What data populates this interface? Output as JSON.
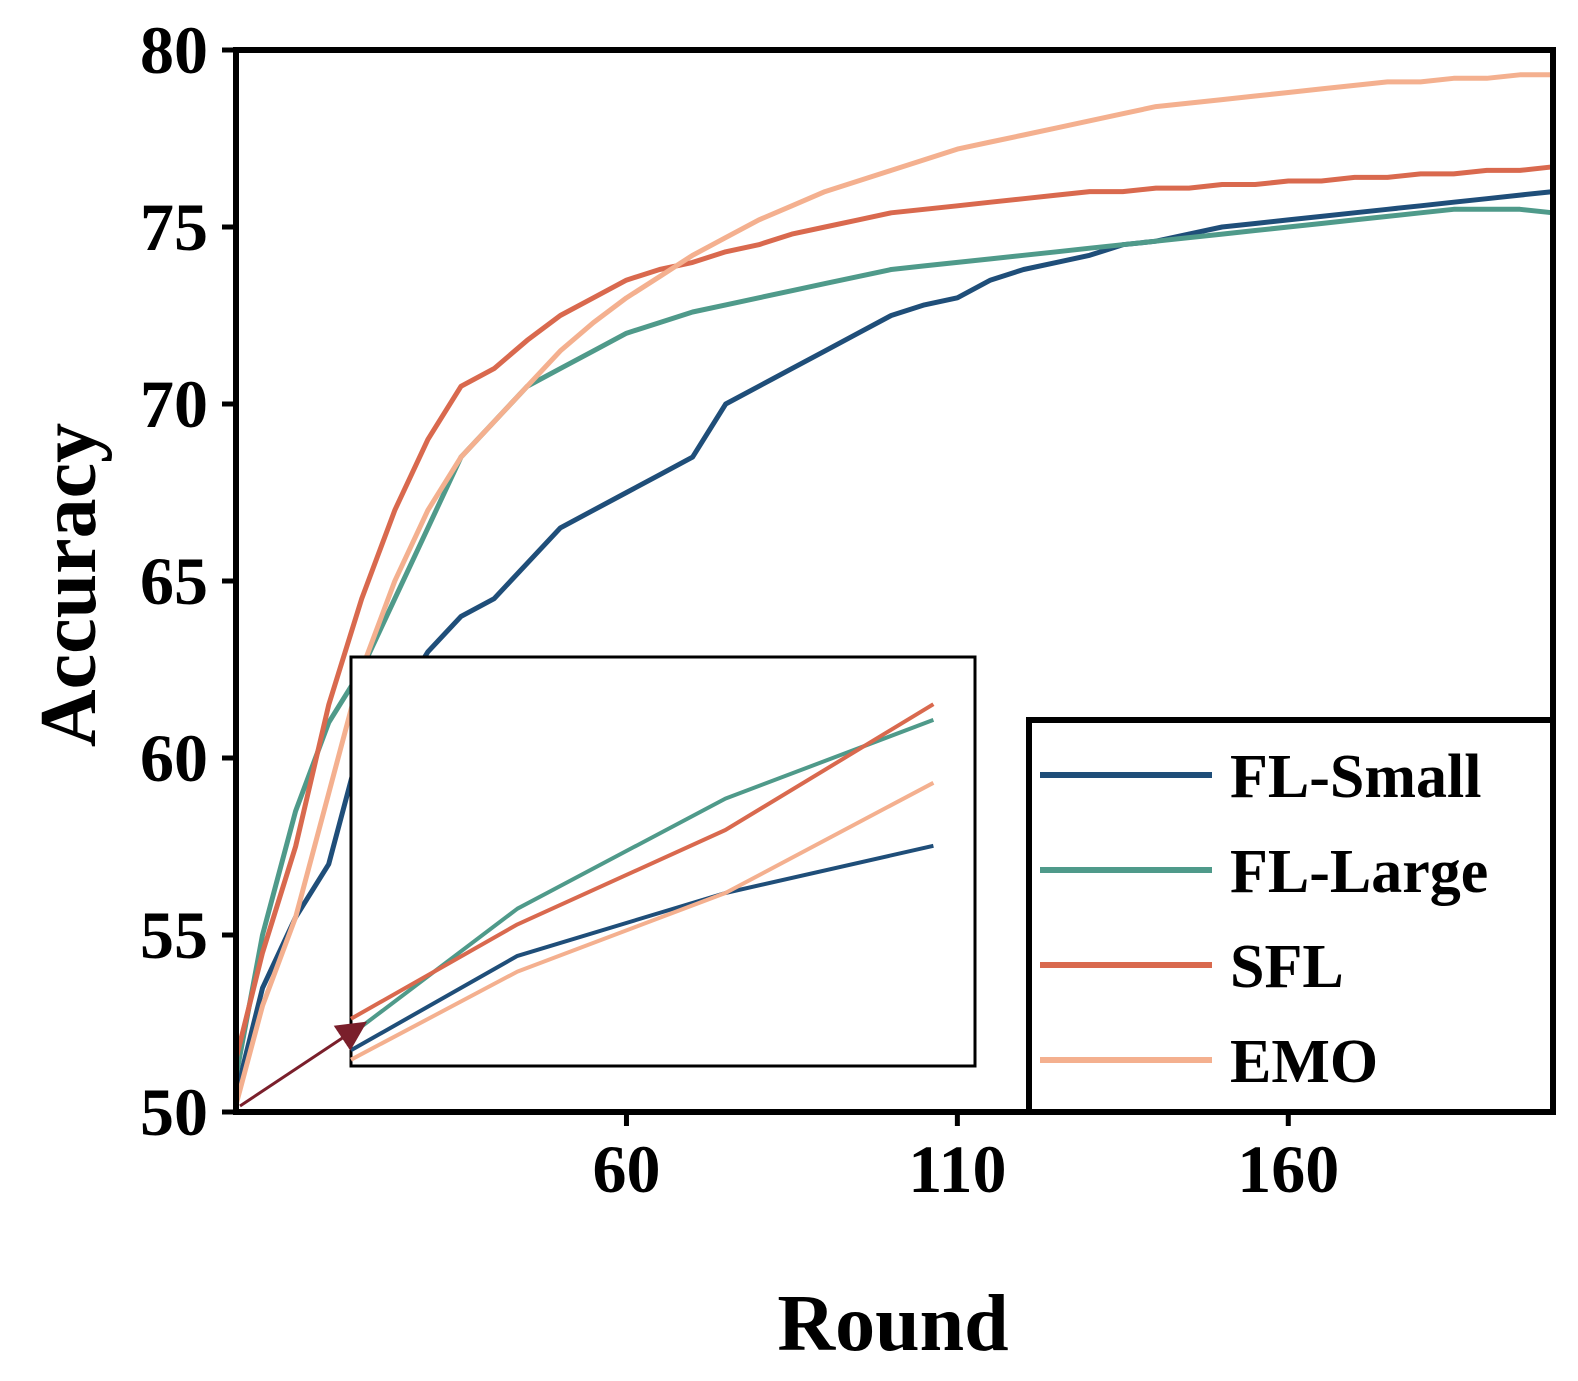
{
  "chart_data": {
    "type": "line",
    "title": "",
    "xlabel": "Round",
    "ylabel": "Accuracy",
    "xlim": [
      1,
      200
    ],
    "ylim": [
      50,
      80
    ],
    "xticks": [
      60,
      110,
      160
    ],
    "yticks": [
      50,
      55,
      60,
      65,
      70,
      75,
      80
    ],
    "grid": false,
    "legend_position": "bottom-right",
    "inset": {
      "description_of_region": "zoom of early rounds",
      "x_range": [
        1,
        16
      ],
      "y_range": [
        50,
        63
      ]
    },
    "series": [
      {
        "name": "FL-Small",
        "color": "#1f4e79",
        "x": [
          1,
          5,
          10,
          15,
          20,
          25,
          30,
          35,
          40,
          45,
          50,
          55,
          60,
          65,
          70,
          75,
          80,
          85,
          90,
          95,
          100,
          105,
          110,
          115,
          120,
          125,
          130,
          135,
          140,
          145,
          150,
          155,
          160,
          165,
          170,
          175,
          180,
          185,
          190,
          195,
          200
        ],
        "values": [
          50.5,
          53.5,
          55.5,
          57.0,
          60.5,
          61.5,
          63.0,
          64.0,
          64.5,
          65.5,
          66.5,
          67.0,
          67.5,
          68.0,
          68.5,
          70.0,
          70.5,
          71.0,
          71.5,
          72.0,
          72.5,
          72.8,
          73.0,
          73.5,
          73.8,
          74.0,
          74.2,
          74.5,
          74.6,
          74.8,
          75.0,
          75.1,
          75.2,
          75.3,
          75.4,
          75.5,
          75.6,
          75.7,
          75.8,
          75.9,
          76.0
        ]
      },
      {
        "name": "FL-Large",
        "color": "#4f9a8a",
        "x": [
          1,
          5,
          10,
          15,
          20,
          25,
          30,
          35,
          40,
          45,
          50,
          55,
          60,
          65,
          70,
          75,
          80,
          85,
          90,
          95,
          100,
          105,
          110,
          115,
          120,
          125,
          130,
          135,
          140,
          145,
          150,
          155,
          160,
          165,
          170,
          175,
          180,
          185,
          190,
          195,
          200
        ],
        "values": [
          51.0,
          55.0,
          58.5,
          61.0,
          62.5,
          64.5,
          66.5,
          68.5,
          69.5,
          70.5,
          71.0,
          71.5,
          72.0,
          72.3,
          72.6,
          72.8,
          73.0,
          73.2,
          73.4,
          73.6,
          73.8,
          73.9,
          74.0,
          74.1,
          74.2,
          74.3,
          74.4,
          74.5,
          74.6,
          74.7,
          74.8,
          74.9,
          75.0,
          75.1,
          75.2,
          75.3,
          75.4,
          75.5,
          75.5,
          75.5,
          75.4
        ]
      },
      {
        "name": "SFL",
        "color": "#d9694e",
        "x": [
          1,
          5,
          10,
          15,
          20,
          25,
          30,
          35,
          40,
          45,
          50,
          55,
          60,
          65,
          70,
          75,
          80,
          85,
          90,
          95,
          100,
          105,
          110,
          115,
          120,
          125,
          130,
          135,
          140,
          145,
          150,
          155,
          160,
          165,
          170,
          175,
          180,
          185,
          190,
          195,
          200
        ],
        "values": [
          51.5,
          54.5,
          57.5,
          61.5,
          64.5,
          67.0,
          69.0,
          70.5,
          71.0,
          71.8,
          72.5,
          73.0,
          73.5,
          73.8,
          74.0,
          74.3,
          74.5,
          74.8,
          75.0,
          75.2,
          75.4,
          75.5,
          75.6,
          75.7,
          75.8,
          75.9,
          76.0,
          76.0,
          76.1,
          76.1,
          76.2,
          76.2,
          76.3,
          76.3,
          76.4,
          76.4,
          76.5,
          76.5,
          76.6,
          76.6,
          76.7
        ]
      },
      {
        "name": "EMO",
        "color": "#f4b08f",
        "x": [
          1,
          5,
          10,
          15,
          20,
          25,
          30,
          35,
          40,
          45,
          50,
          55,
          60,
          65,
          70,
          75,
          80,
          85,
          90,
          95,
          100,
          105,
          110,
          115,
          120,
          125,
          130,
          135,
          140,
          145,
          150,
          155,
          160,
          165,
          170,
          175,
          180,
          185,
          190,
          195,
          200
        ],
        "values": [
          50.2,
          53.0,
          55.5,
          59.0,
          62.5,
          65.0,
          67.0,
          68.5,
          69.5,
          70.5,
          71.5,
          72.3,
          73.0,
          73.6,
          74.2,
          74.7,
          75.2,
          75.6,
          76.0,
          76.3,
          76.6,
          76.9,
          77.2,
          77.4,
          77.6,
          77.8,
          78.0,
          78.2,
          78.4,
          78.5,
          78.6,
          78.7,
          78.8,
          78.9,
          79.0,
          79.1,
          79.1,
          79.2,
          79.2,
          79.3,
          79.3
        ]
      }
    ]
  }
}
